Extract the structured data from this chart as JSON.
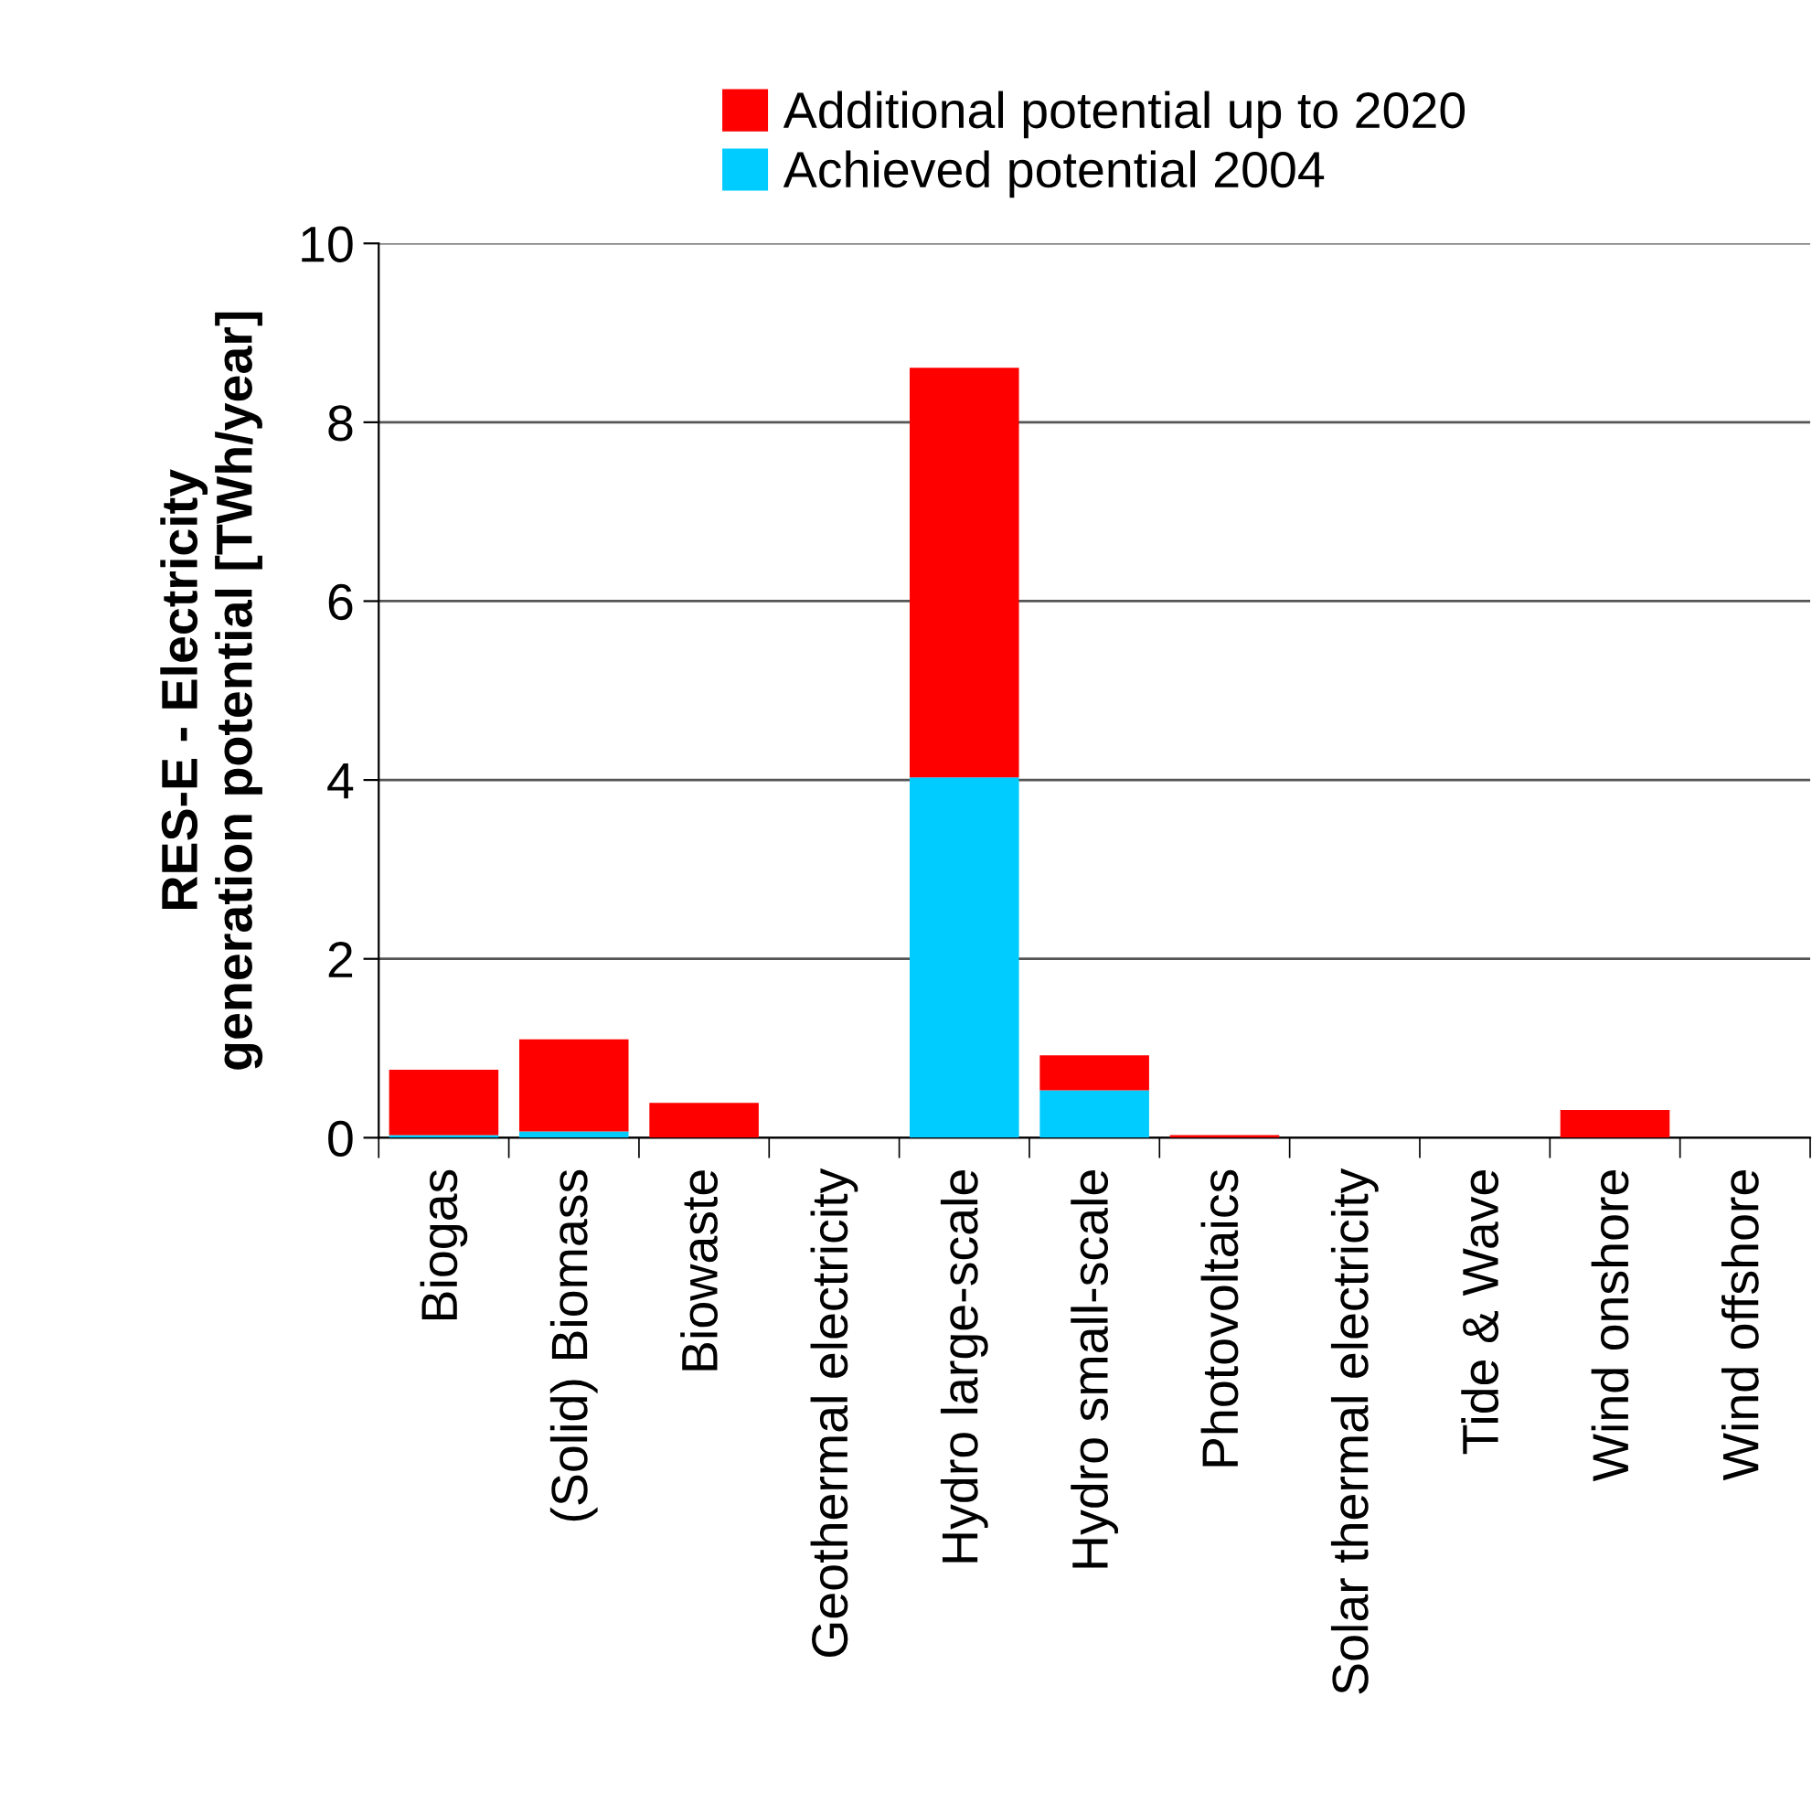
{
  "chart_data": {
    "type": "bar",
    "stacked": true,
    "ylabel": "RES-E - Electricity\ngeneration potential [TWh/year]",
    "categories": [
      "Biogas",
      "(Solid) Biomass",
      "Biowaste",
      "Geothermal electricity",
      "Hydro large-scale",
      "Hydro small-scale",
      "Photovoltaics",
      "Solar thermal electricity",
      "Tide & Wave",
      "Wind onshore",
      "Wind offshore"
    ],
    "series": [
      {
        "name": "Achieved potential 2004",
        "color": "#00ccff",
        "values": [
          0.03,
          0.07,
          0,
          0,
          4.03,
          0.53,
          0,
          0,
          0,
          0,
          0
        ]
      },
      {
        "name": "Additional potential up to 2020",
        "color": "#ff0000",
        "values": [
          0.73,
          1.03,
          0.39,
          0,
          4.58,
          0.39,
          0.03,
          0,
          0,
          0.31,
          0
        ]
      }
    ],
    "ylim": [
      0,
      10
    ],
    "yticks": [
      0,
      2,
      4,
      6,
      8,
      10
    ],
    "grid": "y",
    "legend": "top"
  }
}
